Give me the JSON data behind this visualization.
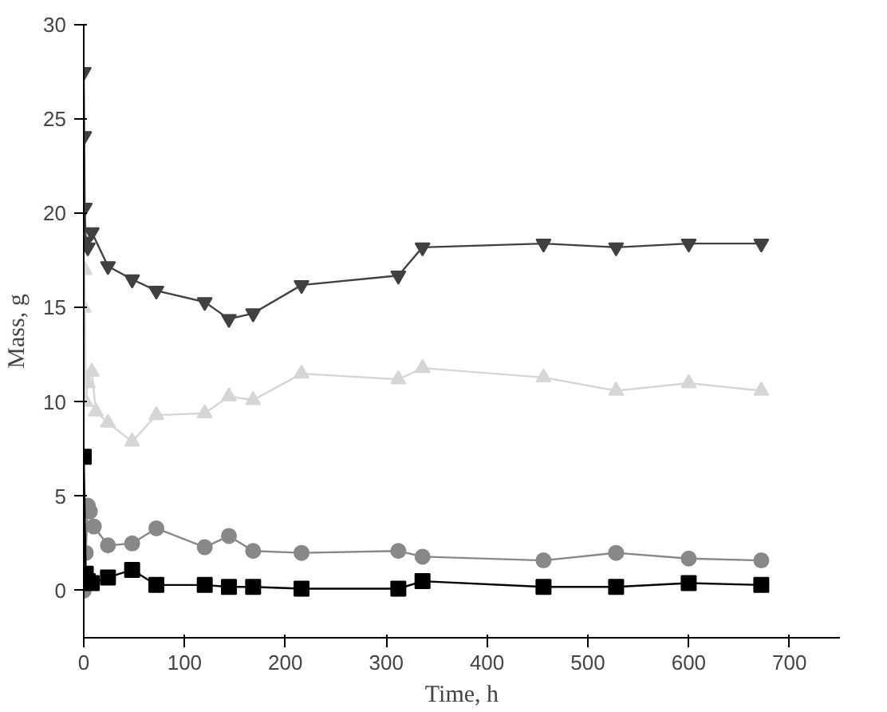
{
  "chart_data": {
    "type": "line",
    "xlabel": "Time, h",
    "ylabel": "Mass, g",
    "xlim": [
      0,
      750
    ],
    "ylim": [
      -2.5,
      30
    ],
    "xticks": [
      0,
      100,
      200,
      300,
      400,
      500,
      600,
      700
    ],
    "yticks": [
      0,
      5,
      10,
      15,
      20,
      25,
      30
    ],
    "grid": false,
    "line_style": "solid",
    "series": [
      {
        "color": "#404040",
        "marker": "triangle",
        "x": [
          0,
          0.5,
          1,
          2,
          4,
          8,
          24,
          48,
          72,
          120,
          144,
          168,
          216,
          312,
          336,
          456,
          528,
          600,
          672
        ],
        "values": [
          27.5,
          24.1,
          20.3,
          18.5,
          18.2,
          19.0,
          17.2,
          16.5,
          15.9,
          15.3,
          14.4,
          14.7,
          16.2,
          16.7,
          18.2,
          18.4,
          18.2,
          18.4,
          18.4
        ]
      },
      {
        "color": "#d6d6d6",
        "marker": "triangle",
        "x": [
          0,
          1,
          2,
          4,
          8,
          12,
          24,
          48,
          72,
          120,
          144,
          168,
          216,
          312,
          336,
          456,
          528,
          600,
          672
        ],
        "values": [
          15.0,
          17.0,
          10.0,
          11.0,
          11.6,
          9.5,
          8.9,
          7.9,
          9.3,
          9.4,
          10.3,
          10.1,
          11.5,
          11.2,
          11.8,
          11.3,
          10.6,
          11.0,
          10.6
        ]
      },
      {
        "color": "#888888",
        "marker": "circle",
        "x": [
          0,
          2,
          4,
          6,
          10,
          24,
          48,
          72,
          120,
          144,
          168,
          216,
          312,
          336,
          456,
          528,
          600,
          672
        ],
        "values": [
          0.0,
          2.0,
          4.5,
          4.2,
          3.4,
          2.4,
          2.5,
          3.3,
          2.3,
          2.9,
          2.1,
          2.0,
          2.1,
          1.8,
          1.6,
          2.0,
          1.7,
          1.6
        ]
      },
      {
        "color": "#000000",
        "marker": "square",
        "x": [
          0,
          2,
          4,
          8,
          24,
          48,
          72,
          120,
          144,
          168,
          216,
          312,
          336,
          456,
          528,
          600,
          672
        ],
        "values": [
          7.1,
          0.9,
          0.5,
          0.4,
          0.7,
          1.1,
          0.3,
          0.3,
          0.2,
          0.2,
          0.1,
          0.1,
          0.5,
          0.2,
          0.2,
          0.4,
          0.3
        ]
      }
    ]
  }
}
